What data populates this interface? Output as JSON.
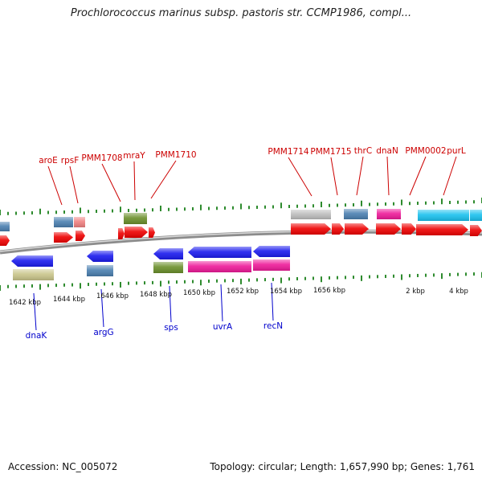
{
  "title": "Prochlorococcus marinus subsp. pastoris str. CCMP1986, compl...",
  "accession": "Accession: NC_005072",
  "summary": "Topology: circular; Length: 1,657,990 bp; Genes: 1,761",
  "colors": {
    "backbone": "#8c8c8c",
    "tick": "#2e8b2e",
    "label_top": "#cc0000",
    "label_bottom": "#0000cc",
    "red": "#ee0000",
    "blue": "#1a1aee",
    "steelblue": "#4a7fb0",
    "olive": "#6a8f2a",
    "khaki": "#c9c58a",
    "magenta": "#ee1a99",
    "cyan": "#19c1ee",
    "pink": "#f08080",
    "gray": "#bdbdbd"
  },
  "scale_labels": [
    "1642 kbp",
    "1644 kbp",
    "1646 kbp",
    "1648 kbp",
    "1650 kbp",
    "1652 kbp",
    "1654 kbp",
    "1656 kbp",
    "2 kbp",
    "4 kbp"
  ],
  "top_labels": [
    "aroE",
    "rpsF",
    "PMM1708",
    "mraY",
    "PMM1710",
    "PMM1714",
    "PMM1715",
    "thrC",
    "dnaN",
    "PMM0002",
    "purL"
  ],
  "bottom_labels": [
    "dnaK",
    "argG",
    "sps",
    "uvrA",
    "recN"
  ]
}
